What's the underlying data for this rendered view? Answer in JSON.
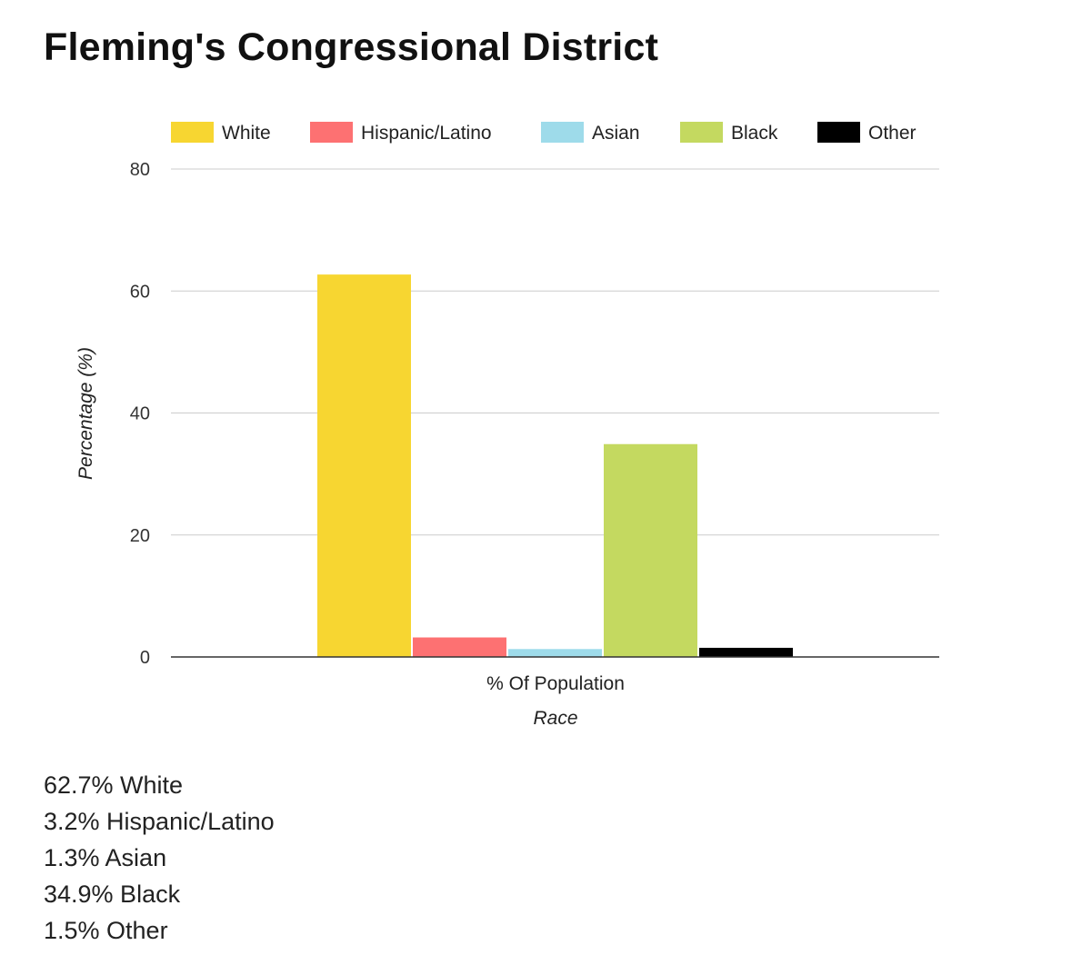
{
  "title": "Fleming's Congressional District",
  "chart_data": {
    "type": "bar",
    "title": "Fleming's Congressional District",
    "categories": [
      "% Of Population"
    ],
    "series": [
      {
        "name": "White",
        "values": [
          62.7
        ],
        "color": "#f7d631"
      },
      {
        "name": "Hispanic/Latino",
        "values": [
          3.2
        ],
        "color": "#fd7172"
      },
      {
        "name": "Asian",
        "values": [
          1.3
        ],
        "color": "#9edbea"
      },
      {
        "name": "Black",
        "values": [
          34.9
        ],
        "color": "#c4d960"
      },
      {
        "name": "Other",
        "values": [
          1.5
        ],
        "color": "#000000"
      }
    ],
    "xlabel": "Race",
    "ylabel": "Percentage (%)",
    "ylim": [
      0,
      80
    ],
    "yticks": [
      0,
      20,
      40,
      60,
      80
    ],
    "grid": true,
    "legend_position": "top"
  },
  "summary": [
    "62.7% White",
    "3.2% Hispanic/Latino",
    "1.3% Asian",
    "34.9% Black",
    "1.5% Other"
  ]
}
